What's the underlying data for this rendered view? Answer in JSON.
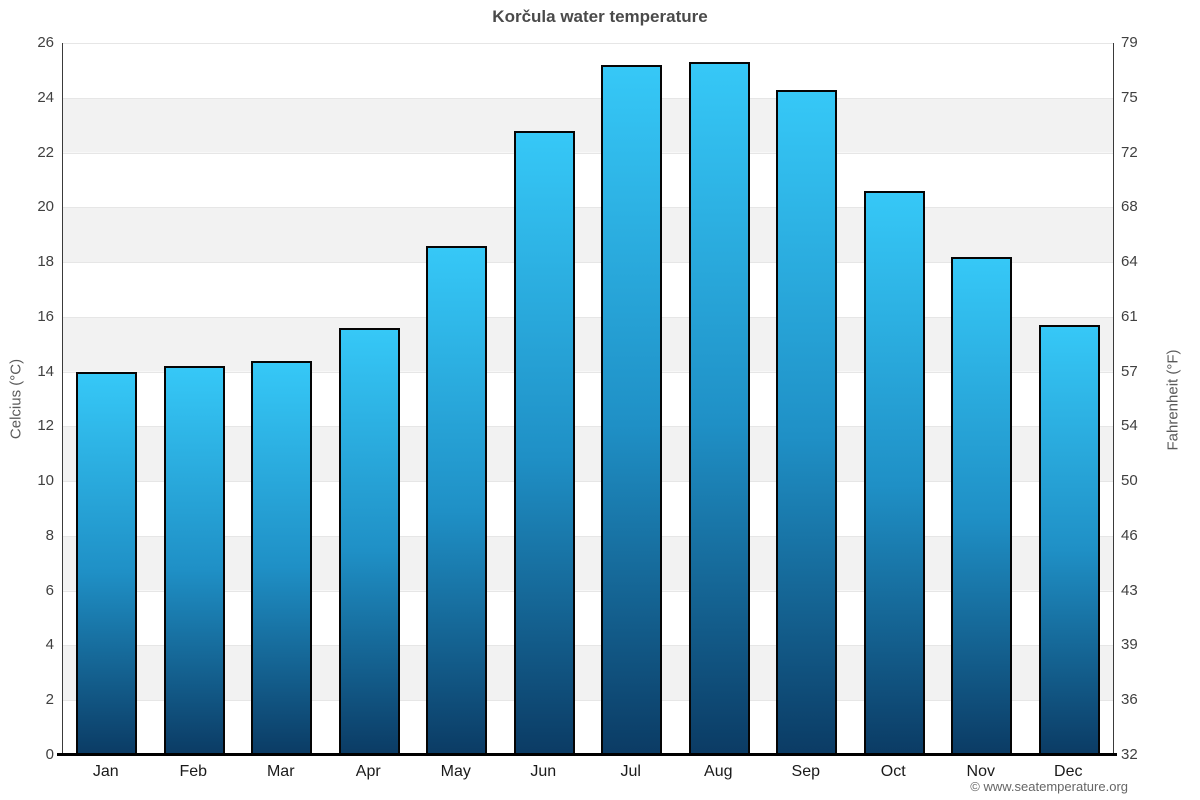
{
  "footer_credit": "© www.seatemperature.org",
  "chart_data": {
    "type": "bar",
    "title": "Korčula water temperature",
    "categories": [
      "Jan",
      "Feb",
      "Mar",
      "Apr",
      "May",
      "Jun",
      "Jul",
      "Aug",
      "Sep",
      "Oct",
      "Nov",
      "Dec"
    ],
    "series": [
      {
        "name": "Water temperature",
        "values": [
          14.0,
          14.2,
          14.4,
          15.6,
          18.6,
          22.8,
          25.2,
          25.3,
          24.3,
          20.6,
          18.2,
          15.7
        ]
      }
    ],
    "xlabel": "",
    "ylabel_left": "Celcius (°C)",
    "ylabel_right": "Fahrenheit (°F)",
    "ylim_celsius": [
      0,
      26
    ],
    "ylim_fahrenheit": [
      32,
      79
    ],
    "yticks_celsius": [
      0,
      2,
      4,
      6,
      8,
      10,
      12,
      14,
      16,
      18,
      20,
      22,
      24,
      26
    ],
    "yticks_fahrenheit": [
      32,
      36,
      39,
      43,
      46,
      50,
      54,
      57,
      61,
      64,
      68,
      72,
      75,
      79
    ],
    "grid": "horizontal gridlines with alternating background bands",
    "legend": "none",
    "colors": {
      "bar_gradient_top": "#36c8f7",
      "bar_gradient_mid": "#1f90c6",
      "bar_gradient_bottom": "#0b3b64",
      "bar_border": "#050505",
      "band_gray": "#f2f2f2",
      "band_white": "#ffffff",
      "gridline": "#e6e6e6",
      "title_text": "#4a4a4a",
      "tick_text": "#404040",
      "credit_text": "#666666"
    }
  }
}
